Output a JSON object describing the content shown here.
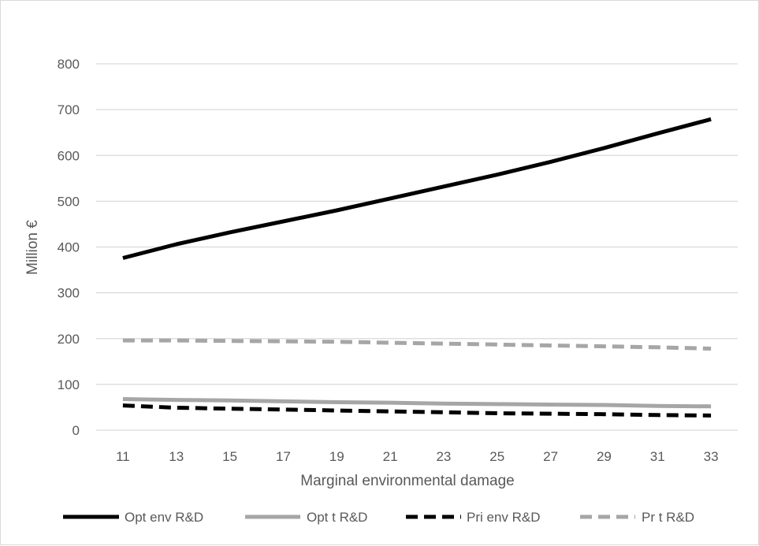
{
  "chart_data": {
    "type": "line",
    "title": "",
    "xlabel": "Marginal environmental damage",
    "ylabel": "Million €",
    "x": [
      11,
      13,
      15,
      17,
      19,
      21,
      23,
      25,
      27,
      29,
      31,
      33
    ],
    "ylim": [
      0,
      800
    ],
    "yticks": [
      0,
      100,
      200,
      300,
      400,
      500,
      600,
      700,
      800
    ],
    "grid": true,
    "legend_position": "bottom",
    "series": [
      {
        "name": "Opt env R&D",
        "color": "#000000",
        "dashed": false,
        "values": [
          376,
          406,
          432,
          456,
          480,
          506,
          532,
          558,
          586,
          616,
          648,
          679
        ]
      },
      {
        "name": "Opt t R&D",
        "color": "#a6a6a6",
        "dashed": false,
        "values": [
          68,
          66,
          65,
          63,
          61,
          60,
          58,
          57,
          56,
          55,
          53,
          52
        ]
      },
      {
        "name": "Pri env R&D",
        "color": "#000000",
        "dashed": true,
        "values": [
          54,
          49,
          47,
          45,
          43,
          41,
          39,
          37,
          36,
          35,
          33,
          32
        ]
      },
      {
        "name": "Pr t R&D",
        "color": "#a6a6a6",
        "dashed": true,
        "values": [
          196,
          196,
          195,
          194,
          193,
          191,
          189,
          187,
          185,
          183,
          181,
          178
        ]
      }
    ]
  }
}
